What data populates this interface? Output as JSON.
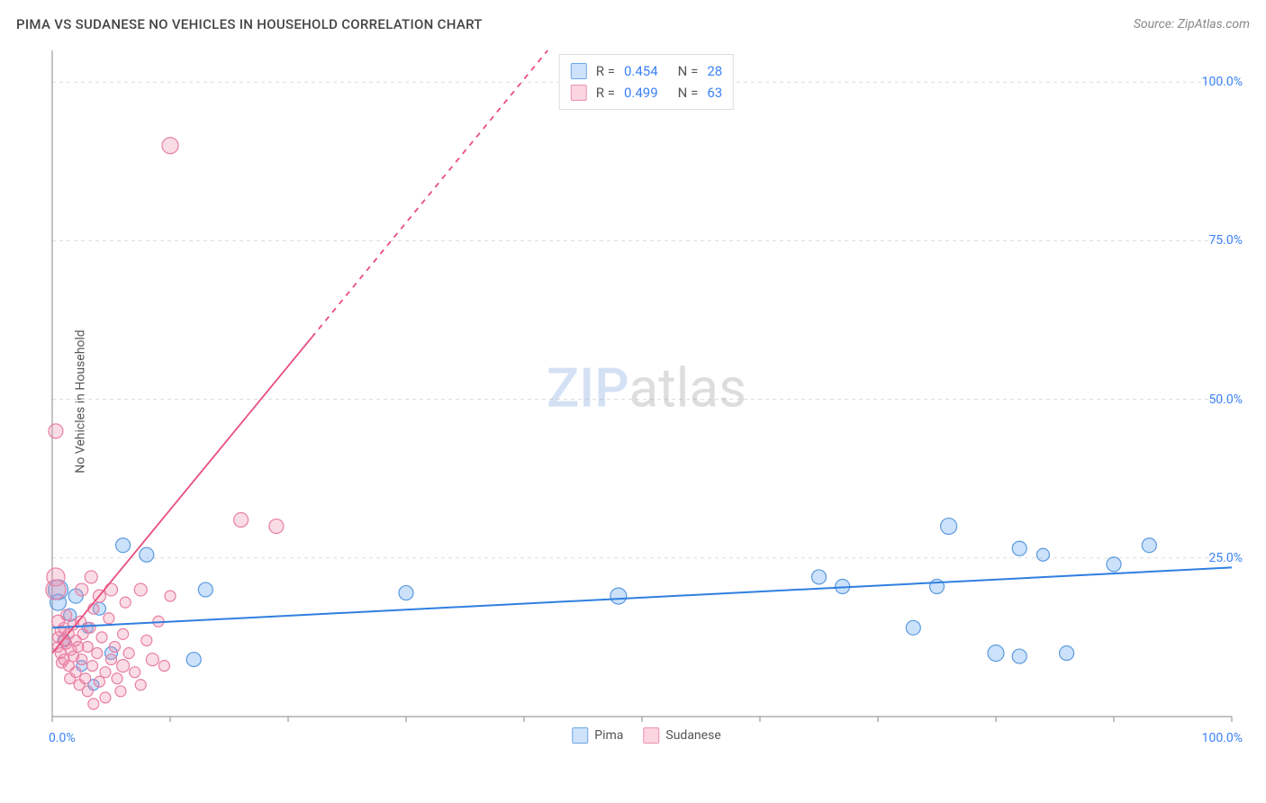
{
  "header": {
    "title": "PIMA VS SUDANESE NO VEHICLES IN HOUSEHOLD CORRELATION CHART",
    "source": "Source: ZipAtlas.com"
  },
  "watermark": {
    "part1": "ZIP",
    "part2": "atlas"
  },
  "chart": {
    "type": "scatter",
    "ylabel": "No Vehicles in Household",
    "xlim": [
      0,
      100
    ],
    "ylim": [
      0,
      105
    ],
    "x_ticks_minor": [
      0,
      10,
      20,
      30,
      40,
      50,
      60,
      70,
      80,
      90,
      100
    ],
    "y_gridlines": [
      25,
      50,
      75,
      100
    ],
    "y_tick_labels": [
      "25.0%",
      "50.0%",
      "75.0%",
      "100.0%"
    ],
    "x_origin_label": "0.0%",
    "x_max_label": "100.0%",
    "background_color": "#ffffff",
    "grid_color": "#dddddd",
    "axis_color": "#888888",
    "tick_label_color": "#3b82f6",
    "series": [
      {
        "name": "Pima",
        "color_fill": "rgba(110,170,240,0.35)",
        "color_stroke": "#5a9ae0",
        "swatch_fill": "#cfe2fb",
        "swatch_border": "#6aa6e8",
        "trend": {
          "x1": 0,
          "y1": 14,
          "x2": 100,
          "y2": 23.5,
          "dashed_after_x": null,
          "color": "#2f7fe0",
          "width": 2
        },
        "stats": {
          "R": "0.454",
          "N": "28"
        },
        "points": [
          {
            "x": 0.5,
            "y": 18,
            "r": 9
          },
          {
            "x": 0.5,
            "y": 20,
            "r": 11
          },
          {
            "x": 1,
            "y": 12,
            "r": 7
          },
          {
            "x": 1.5,
            "y": 16,
            "r": 7
          },
          {
            "x": 2,
            "y": 19,
            "r": 8
          },
          {
            "x": 2.5,
            "y": 8,
            "r": 6
          },
          {
            "x": 3,
            "y": 14,
            "r": 6
          },
          {
            "x": 3.5,
            "y": 5,
            "r": 6
          },
          {
            "x": 4,
            "y": 17,
            "r": 7
          },
          {
            "x": 5,
            "y": 10,
            "r": 7
          },
          {
            "x": 6,
            "y": 27,
            "r": 8
          },
          {
            "x": 8,
            "y": 25.5,
            "r": 8
          },
          {
            "x": 12,
            "y": 9,
            "r": 8
          },
          {
            "x": 13,
            "y": 20,
            "r": 8
          },
          {
            "x": 30,
            "y": 19.5,
            "r": 8
          },
          {
            "x": 48,
            "y": 19,
            "r": 9
          },
          {
            "x": 65,
            "y": 22,
            "r": 8
          },
          {
            "x": 67,
            "y": 20.5,
            "r": 8
          },
          {
            "x": 73,
            "y": 14,
            "r": 8
          },
          {
            "x": 75,
            "y": 20.5,
            "r": 8
          },
          {
            "x": 76,
            "y": 30,
            "r": 9
          },
          {
            "x": 80,
            "y": 10,
            "r": 9
          },
          {
            "x": 82,
            "y": 9.5,
            "r": 8
          },
          {
            "x": 82,
            "y": 26.5,
            "r": 8
          },
          {
            "x": 84,
            "y": 25.5,
            "r": 7
          },
          {
            "x": 86,
            "y": 10,
            "r": 8
          },
          {
            "x": 90,
            "y": 24,
            "r": 8
          },
          {
            "x": 93,
            "y": 27,
            "r": 8
          }
        ]
      },
      {
        "name": "Sudanese",
        "color_fill": "rgba(240,140,170,0.30)",
        "color_stroke": "#e87fa3",
        "swatch_fill": "#fbd5e0",
        "swatch_border": "#ec91af",
        "trend": {
          "x1": 0,
          "y1": 10,
          "x2": 42,
          "y2": 105,
          "dashed_after_x": 22,
          "color": "#e84e7d",
          "width": 1.8
        },
        "stats": {
          "R": "0.499",
          "N": "63"
        },
        "points": [
          {
            "x": 0.3,
            "y": 45,
            "r": 8
          },
          {
            "x": 0.3,
            "y": 22,
            "r": 10
          },
          {
            "x": 0.3,
            "y": 20,
            "r": 11
          },
          {
            "x": 0.5,
            "y": 15,
            "r": 7
          },
          {
            "x": 0.5,
            "y": 12.5,
            "r": 6
          },
          {
            "x": 0.5,
            "y": 11,
            "r": 6
          },
          {
            "x": 0.7,
            "y": 13.5,
            "r": 6
          },
          {
            "x": 0.7,
            "y": 10,
            "r": 6
          },
          {
            "x": 0.8,
            "y": 8.5,
            "r": 6
          },
          {
            "x": 1,
            "y": 14,
            "r": 6
          },
          {
            "x": 1,
            "y": 12,
            "r": 6
          },
          {
            "x": 1,
            "y": 9,
            "r": 6
          },
          {
            "x": 1.2,
            "y": 16,
            "r": 6
          },
          {
            "x": 1.2,
            "y": 11.5,
            "r": 6
          },
          {
            "x": 1.4,
            "y": 13,
            "r": 6
          },
          {
            "x": 1.4,
            "y": 8,
            "r": 6
          },
          {
            "x": 1.5,
            "y": 6,
            "r": 6
          },
          {
            "x": 1.6,
            "y": 10.5,
            "r": 6
          },
          {
            "x": 1.8,
            "y": 14.5,
            "r": 6
          },
          {
            "x": 1.8,
            "y": 9.5,
            "r": 6
          },
          {
            "x": 2,
            "y": 12,
            "r": 6
          },
          {
            "x": 2,
            "y": 7,
            "r": 6
          },
          {
            "x": 2.2,
            "y": 11,
            "r": 6
          },
          {
            "x": 2.3,
            "y": 5,
            "r": 6
          },
          {
            "x": 2.4,
            "y": 15,
            "r": 6
          },
          {
            "x": 2.5,
            "y": 20,
            "r": 7
          },
          {
            "x": 2.5,
            "y": 9,
            "r": 6
          },
          {
            "x": 2.6,
            "y": 13,
            "r": 6
          },
          {
            "x": 2.8,
            "y": 6,
            "r": 6
          },
          {
            "x": 3,
            "y": 11,
            "r": 6
          },
          {
            "x": 3,
            "y": 4,
            "r": 6
          },
          {
            "x": 3.2,
            "y": 14,
            "r": 6
          },
          {
            "x": 3.3,
            "y": 22,
            "r": 7
          },
          {
            "x": 3.4,
            "y": 8,
            "r": 6
          },
          {
            "x": 3.5,
            "y": 17,
            "r": 6
          },
          {
            "x": 3.5,
            "y": 2,
            "r": 6
          },
          {
            "x": 3.8,
            "y": 10,
            "r": 6
          },
          {
            "x": 4,
            "y": 19,
            "r": 7
          },
          {
            "x": 4,
            "y": 5.5,
            "r": 6
          },
          {
            "x": 4.2,
            "y": 12.5,
            "r": 6
          },
          {
            "x": 4.5,
            "y": 7,
            "r": 6
          },
          {
            "x": 4.5,
            "y": 3,
            "r": 6
          },
          {
            "x": 4.8,
            "y": 15.5,
            "r": 6
          },
          {
            "x": 5,
            "y": 20,
            "r": 7
          },
          {
            "x": 5,
            "y": 9,
            "r": 6
          },
          {
            "x": 5.3,
            "y": 11,
            "r": 6
          },
          {
            "x": 5.5,
            "y": 6,
            "r": 6
          },
          {
            "x": 5.8,
            "y": 4,
            "r": 6
          },
          {
            "x": 6,
            "y": 13,
            "r": 6
          },
          {
            "x": 6,
            "y": 8,
            "r": 7
          },
          {
            "x": 6.2,
            "y": 18,
            "r": 6
          },
          {
            "x": 6.5,
            "y": 10,
            "r": 6
          },
          {
            "x": 7,
            "y": 7,
            "r": 6
          },
          {
            "x": 7.5,
            "y": 20,
            "r": 7
          },
          {
            "x": 7.5,
            "y": 5,
            "r": 6
          },
          {
            "x": 8,
            "y": 12,
            "r": 6
          },
          {
            "x": 8.5,
            "y": 9,
            "r": 7
          },
          {
            "x": 9,
            "y": 15,
            "r": 6
          },
          {
            "x": 9.5,
            "y": 8,
            "r": 6
          },
          {
            "x": 10,
            "y": 90,
            "r": 9
          },
          {
            "x": 10,
            "y": 19,
            "r": 6
          },
          {
            "x": 16,
            "y": 31,
            "r": 8
          },
          {
            "x": 19,
            "y": 30,
            "r": 8
          }
        ]
      }
    ],
    "legend_bottom": [
      {
        "label": "Pima",
        "series_index": 0
      },
      {
        "label": "Sudanese",
        "series_index": 1
      }
    ]
  }
}
